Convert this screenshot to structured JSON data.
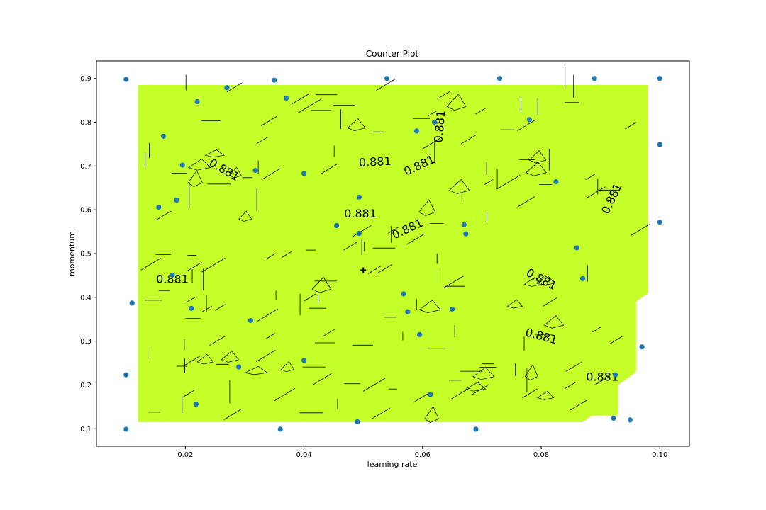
{
  "chart_data": {
    "type": "contour",
    "title": "Counter Plot",
    "xlabel": "learning rate",
    "ylabel": "momentum",
    "xlim": [
      0.005,
      0.105
    ],
    "ylim": [
      0.06,
      0.94
    ],
    "x_ticks": [
      0.02,
      0.04,
      0.06,
      0.08,
      0.1
    ],
    "x_tick_labels": [
      "0.02",
      "0.04",
      "0.06",
      "0.08",
      "0.10"
    ],
    "y_ticks": [
      0.1,
      0.2,
      0.3,
      0.4,
      0.5,
      0.6,
      0.7,
      0.8,
      0.9
    ],
    "y_tick_labels": [
      "0.1",
      "0.2",
      "0.3",
      "0.4",
      "0.5",
      "0.6",
      "0.7",
      "0.8",
      "0.9"
    ],
    "grid": false,
    "fill_color": "#c4ff2a",
    "point_color": "#1f77b4",
    "fill_region": [
      [
        0.012,
        0.885
      ],
      [
        0.098,
        0.885
      ],
      [
        0.098,
        0.41
      ],
      [
        0.096,
        0.39
      ],
      [
        0.096,
        0.23
      ],
      [
        0.093,
        0.2
      ],
      [
        0.093,
        0.13
      ],
      [
        0.0885,
        0.13
      ],
      [
        0.087,
        0.115
      ],
      [
        0.012,
        0.115
      ]
    ],
    "contour_levels": [
      0.881
    ],
    "contour_labels": [
      {
        "text": "0.881",
        "x": 0.0265,
        "y": 0.69,
        "rotation": 30
      },
      {
        "text": "0.881",
        "x": 0.052,
        "y": 0.708,
        "rotation": -3
      },
      {
        "text": "0.881",
        "x": 0.0595,
        "y": 0.7,
        "rotation": -25
      },
      {
        "text": "0.881",
        "x": 0.0495,
        "y": 0.59,
        "rotation": 0
      },
      {
        "text": "0.881",
        "x": 0.0575,
        "y": 0.555,
        "rotation": -25
      },
      {
        "text": "0.881",
        "x": 0.063,
        "y": 0.79,
        "rotation": -85
      },
      {
        "text": "0.881",
        "x": 0.092,
        "y": 0.625,
        "rotation": -65
      },
      {
        "text": "0.881",
        "x": 0.08,
        "y": 0.44,
        "rotation": 28
      },
      {
        "text": "0.881",
        "x": 0.08,
        "y": 0.31,
        "rotation": 15
      },
      {
        "text": "0.881",
        "x": 0.0178,
        "y": 0.44,
        "rotation": 0
      },
      {
        "text": "0.881",
        "x": 0.0903,
        "y": 0.217,
        "rotation": 0
      }
    ],
    "best_point": {
      "x": 0.05,
      "y": 0.462
    },
    "points": [
      {
        "x": 0.01,
        "y": 0.898
      },
      {
        "x": 0.035,
        "y": 0.896
      },
      {
        "x": 0.054,
        "y": 0.9
      },
      {
        "x": 0.073,
        "y": 0.9
      },
      {
        "x": 0.089,
        "y": 0.9
      },
      {
        "x": 0.1,
        "y": 0.9
      },
      {
        "x": 0.027,
        "y": 0.879
      },
      {
        "x": 0.022,
        "y": 0.847
      },
      {
        "x": 0.037,
        "y": 0.855
      },
      {
        "x": 0.062,
        "y": 0.8
      },
      {
        "x": 0.078,
        "y": 0.806
      },
      {
        "x": 0.059,
        "y": 0.78
      },
      {
        "x": 0.0163,
        "y": 0.768
      },
      {
        "x": 0.0195,
        "y": 0.702
      },
      {
        "x": 0.0318,
        "y": 0.69
      },
      {
        "x": 0.04,
        "y": 0.683
      },
      {
        "x": 0.1,
        "y": 0.749
      },
      {
        "x": 0.0825,
        "y": 0.664
      },
      {
        "x": 0.0155,
        "y": 0.606
      },
      {
        "x": 0.0185,
        "y": 0.622
      },
      {
        "x": 0.0493,
        "y": 0.629
      },
      {
        "x": 0.0455,
        "y": 0.564
      },
      {
        "x": 0.0493,
        "y": 0.546
      },
      {
        "x": 0.067,
        "y": 0.566
      },
      {
        "x": 0.0673,
        "y": 0.545
      },
      {
        "x": 0.1,
        "y": 0.572
      },
      {
        "x": 0.086,
        "y": 0.513
      },
      {
        "x": 0.0178,
        "y": 0.451
      },
      {
        "x": 0.087,
        "y": 0.443
      },
      {
        "x": 0.011,
        "y": 0.387
      },
      {
        "x": 0.021,
        "y": 0.375
      },
      {
        "x": 0.031,
        "y": 0.347
      },
      {
        "x": 0.0568,
        "y": 0.408
      },
      {
        "x": 0.0575,
        "y": 0.367
      },
      {
        "x": 0.065,
        "y": 0.373
      },
      {
        "x": 0.0595,
        "y": 0.315
      },
      {
        "x": 0.097,
        "y": 0.287
      },
      {
        "x": 0.029,
        "y": 0.241
      },
      {
        "x": 0.04,
        "y": 0.256
      },
      {
        "x": 0.01,
        "y": 0.223
      },
      {
        "x": 0.0218,
        "y": 0.156
      },
      {
        "x": 0.0613,
        "y": 0.178
      },
      {
        "x": 0.0925,
        "y": 0.223
      },
      {
        "x": 0.0922,
        "y": 0.124
      },
      {
        "x": 0.095,
        "y": 0.12
      },
      {
        "x": 0.049,
        "y": 0.116
      },
      {
        "x": 0.01,
        "y": 0.099
      },
      {
        "x": 0.036,
        "y": 0.099
      },
      {
        "x": 0.069,
        "y": 0.099
      }
    ]
  }
}
